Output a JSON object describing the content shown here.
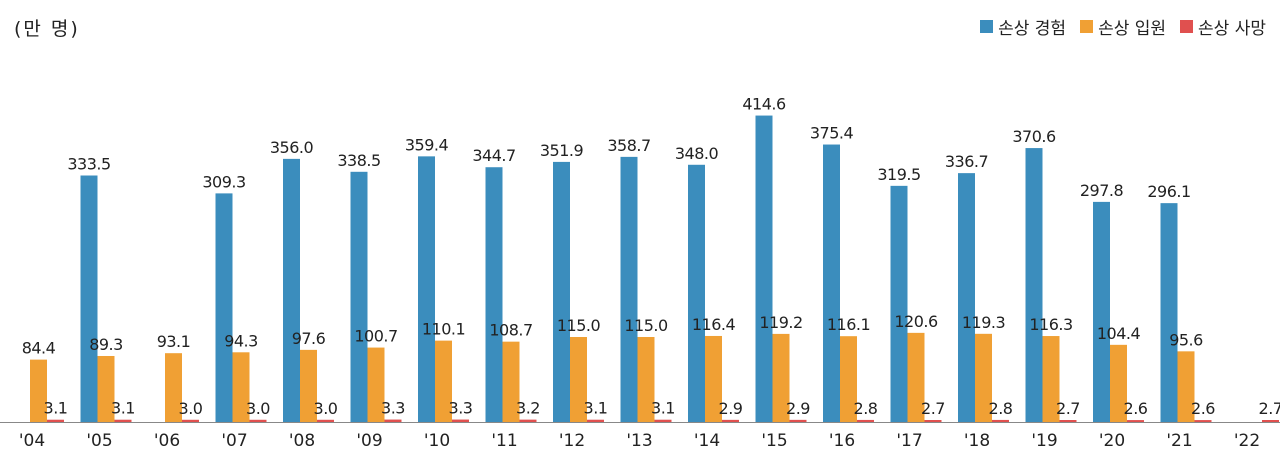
{
  "chart_data": {
    "type": "bar",
    "unit_label": "(만 명)",
    "categories": [
      "'04",
      "'05",
      "'06",
      "'07",
      "'08",
      "'09",
      "'10",
      "'11",
      "'12",
      "'13",
      "'14",
      "'15",
      "'16",
      "'17",
      "'18",
      "'19",
      "'20",
      "'21",
      "'22"
    ],
    "series": [
      {
        "name": "손상 경험",
        "color": "#3b8dbd",
        "values": [
          null,
          333.5,
          null,
          309.3,
          356.0,
          338.5,
          359.4,
          344.7,
          351.9,
          358.7,
          348.0,
          414.6,
          375.4,
          319.5,
          336.7,
          370.6,
          297.8,
          296.1,
          null
        ]
      },
      {
        "name": "손상 입원",
        "color": "#f0a034",
        "values": [
          84.4,
          89.3,
          93.1,
          94.3,
          97.6,
          100.7,
          110.1,
          108.7,
          115.0,
          115.0,
          116.4,
          119.2,
          116.1,
          120.6,
          119.3,
          116.3,
          104.4,
          95.6,
          null
        ]
      },
      {
        "name": "손상 사망",
        "color": "#e0504f",
        "values": [
          3.1,
          3.1,
          3.0,
          3.0,
          3.0,
          3.3,
          3.3,
          3.2,
          3.1,
          3.1,
          2.9,
          2.9,
          2.8,
          2.7,
          2.8,
          2.7,
          2.6,
          2.6,
          2.7
        ]
      }
    ],
    "ylim": [
      0,
      460
    ],
    "legend_position": "top-right",
    "grid": false
  }
}
